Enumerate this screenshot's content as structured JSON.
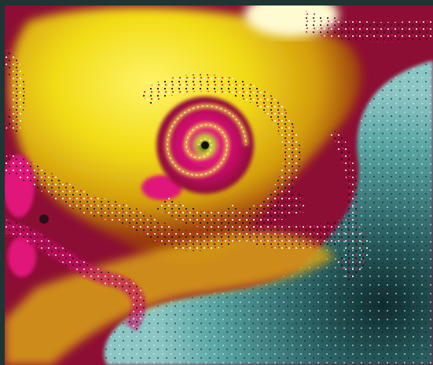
{
  "image": {
    "subject": "fractal-spiral",
    "palette": {
      "frame": "#1e3534",
      "yellow": "#f2e21a",
      "gold": "#d8a414",
      "crimson": "#8c0e34",
      "magenta": "#e0137a",
      "teal": "#4f9c9c",
      "teal_dark": "#1f4a4e",
      "white": "#fdfde8"
    }
  }
}
